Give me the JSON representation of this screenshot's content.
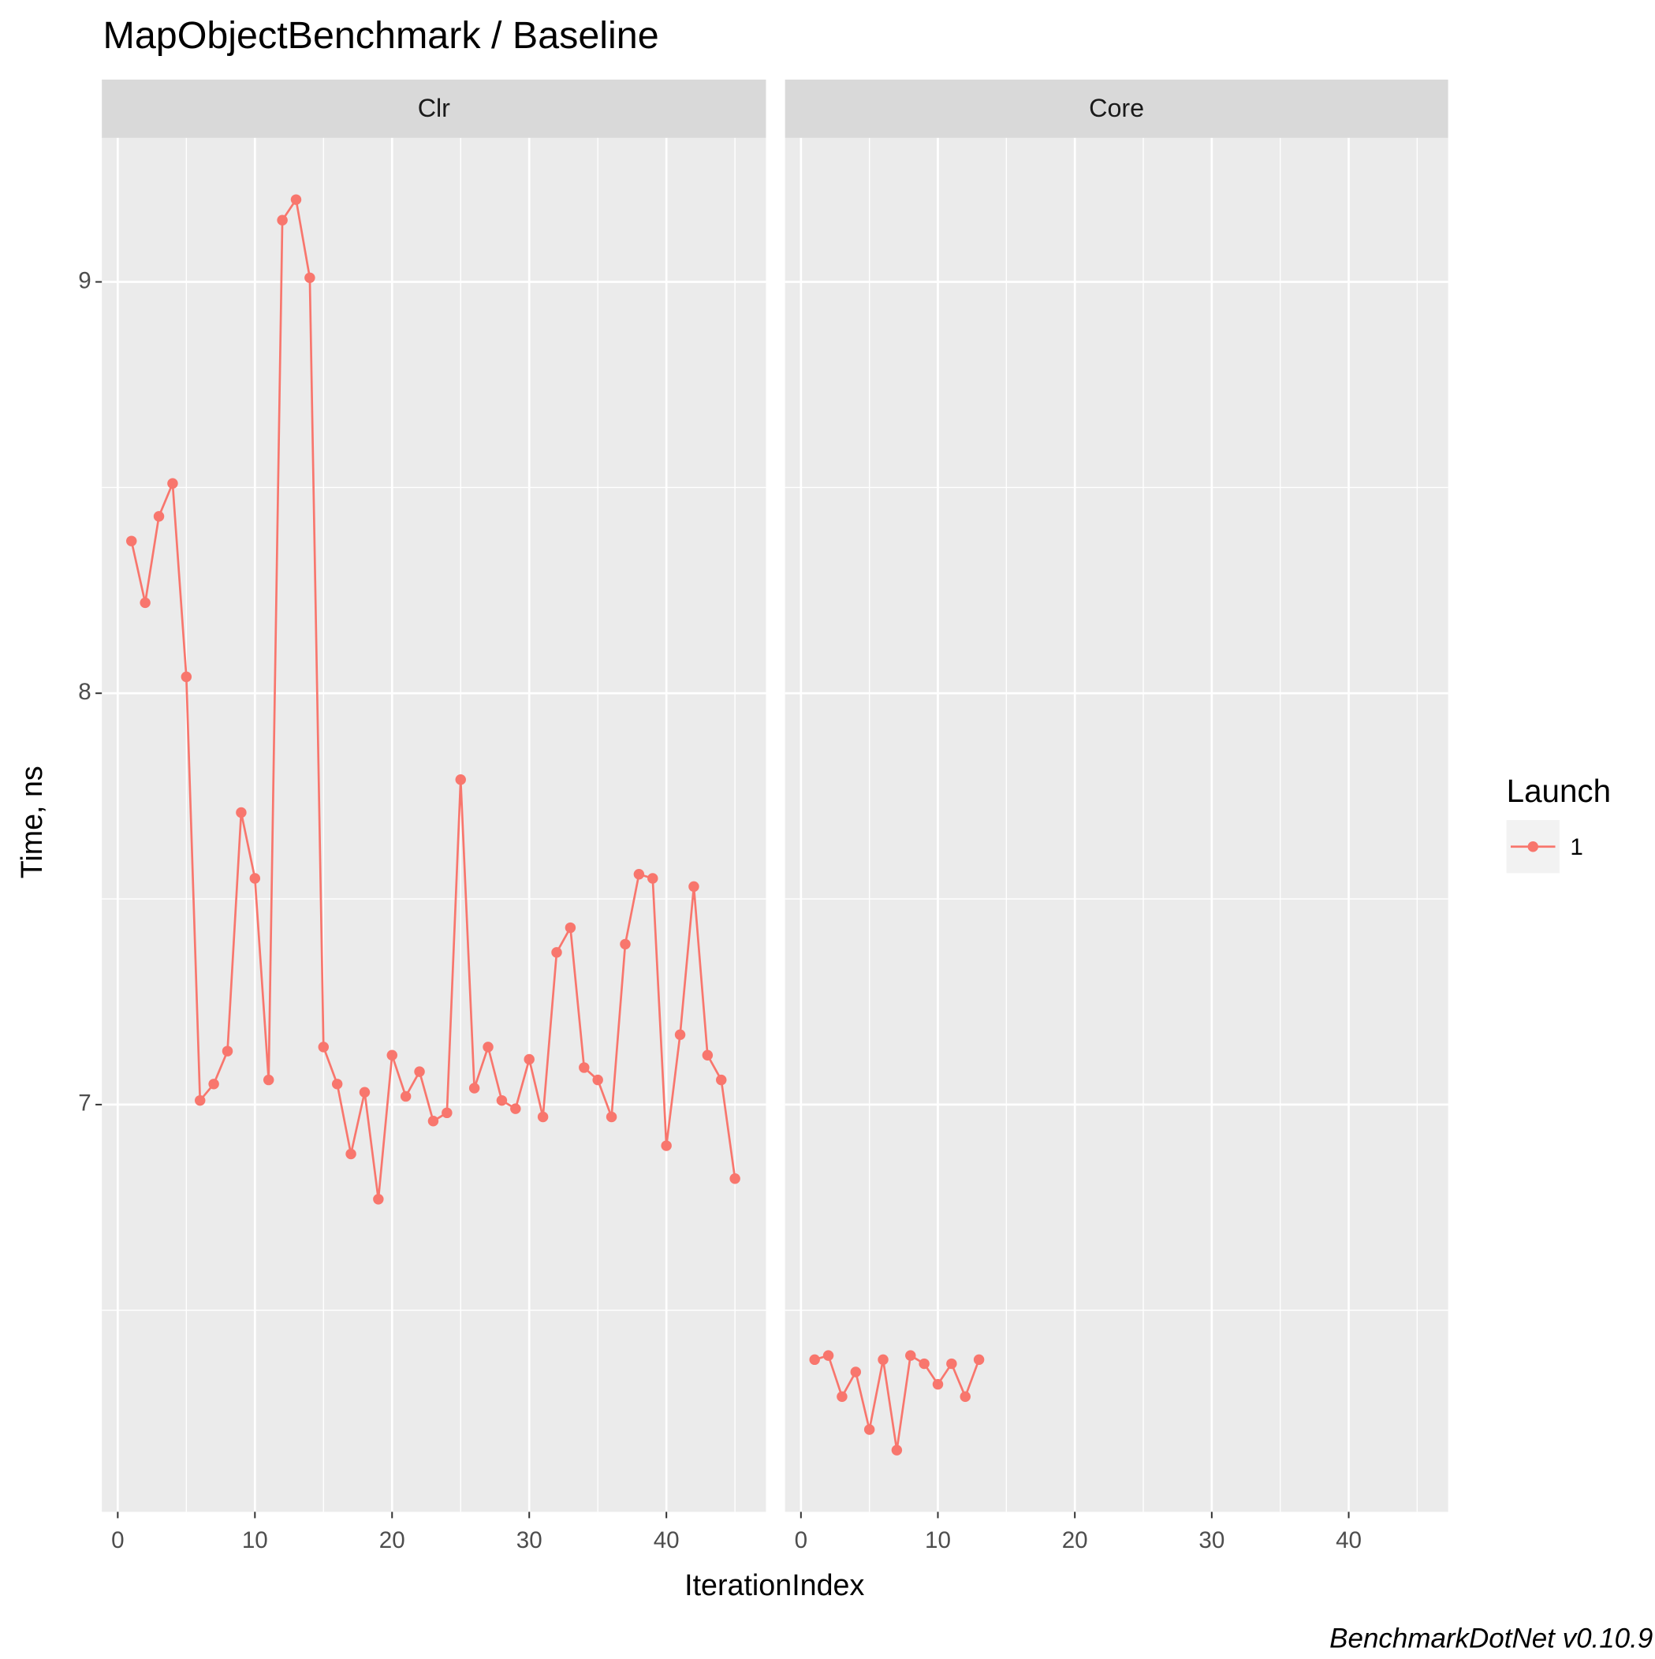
{
  "chart_data": {
    "type": "line",
    "title": "MapObjectBenchmark / Baseline",
    "x_label": "IterationIndex",
    "y_label": "Time, ns",
    "legend_title": "Launch",
    "caption": "BenchmarkDotNet v0.10.9",
    "xlim": [
      -1.16,
      47.26
    ],
    "xticks": [
      0,
      10,
      20,
      30,
      40
    ],
    "x_minor_grid": [
      5,
      15,
      25,
      35,
      45
    ],
    "ylim": [
      6.01,
      9.35
    ],
    "yticks": [
      7,
      8,
      9
    ],
    "y_minor_grid": [
      6.5,
      7.5,
      8.5
    ],
    "grid": true,
    "facets": [
      {
        "name": "Clr",
        "series": [
          {
            "name": "1",
            "color": "#f8766d",
            "x": [
              1,
              2,
              3,
              4,
              5,
              6,
              7,
              8,
              9,
              10,
              11,
              12,
              13,
              14,
              15,
              16,
              17,
              18,
              19,
              20,
              21,
              22,
              23,
              24,
              25,
              26,
              27,
              28,
              29,
              30,
              31,
              32,
              33,
              34,
              35,
              36,
              37,
              38,
              39,
              40,
              41,
              42,
              43,
              44,
              45
            ],
            "values": [
              8.37,
              8.22,
              8.43,
              8.51,
              8.04,
              7.01,
              7.05,
              7.13,
              7.71,
              7.55,
              7.06,
              9.15,
              9.2,
              9.01,
              7.14,
              7.05,
              6.88,
              7.03,
              6.77,
              7.12,
              7.02,
              7.08,
              6.96,
              6.98,
              7.79,
              7.04,
              7.14,
              7.01,
              6.99,
              7.11,
              6.97,
              7.37,
              7.43,
              7.09,
              7.06,
              6.97,
              7.39,
              7.56,
              7.55,
              6.9,
              7.17,
              7.53,
              7.12,
              7.06,
              6.82
            ]
          }
        ]
      },
      {
        "name": "Core",
        "series": [
          {
            "name": "1",
            "color": "#f8766d",
            "x": [
              1,
              2,
              3,
              4,
              5,
              6,
              7,
              8,
              9,
              10,
              11,
              12,
              13
            ],
            "values": [
              6.38,
              6.39,
              6.29,
              6.35,
              6.21,
              6.38,
              6.16,
              6.39,
              6.37,
              6.32,
              6.37,
              6.29,
              6.38
            ]
          }
        ]
      }
    ]
  }
}
